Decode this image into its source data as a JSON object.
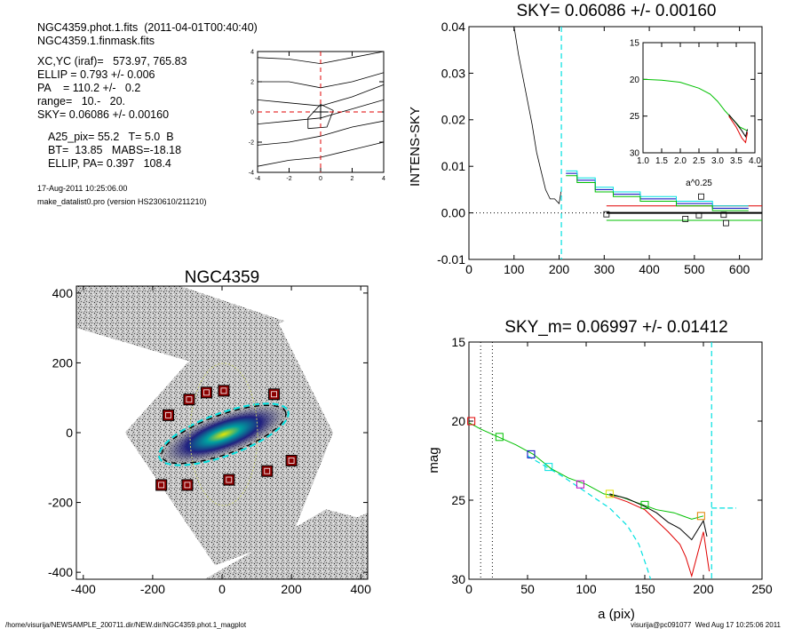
{
  "header": {
    "lines": [
      "NGC4359.phot.1.fits  (2011-04-01T00:40:40)",
      "NGC4359.1.finmask.fits",
      "XC,YC (iraf)=   573.97, 765.83",
      "ELLIP = 0.793 +/- 0.006",
      "PA    = 110.2 +/-   0.2",
      "range=   10.-   20.",
      "SKY= 0.06086 +/- 0.00160",
      "A25_pix= 55.2   T= 5.0  B",
      "BT=  13.85   MABS=-18.18",
      "ELLIP, PA= 0.397   108.4",
      "17-Aug-2011 10:25:06.00",
      "make_datalist0.pro (version HS230610/211210)"
    ]
  },
  "footer": {
    "left": "/home/visurija/NEWSAMPLE_200711.dir/NEW.dir/NGC4359.phot.1_magplot",
    "right": "visurija@pc091077  Wed Aug 17 10:25:06 2011"
  },
  "colors": {
    "sky_cyan": "#00e0e0",
    "green": "#00c000",
    "red": "#e00000",
    "blue": "#0000c0",
    "dark_red": "#8b0000"
  },
  "chart_data": [
    {
      "id": "centroid",
      "type": "line",
      "title": "",
      "xlim": [
        -4,
        4
      ],
      "ylim": [
        -4,
        4
      ],
      "xticks": [
        -4,
        -2,
        0,
        2,
        4
      ],
      "yticks": [
        -4,
        -2,
        0,
        2,
        4
      ],
      "xtick_labels": [
        "-4",
        "-2",
        "0",
        "2",
        "4"
      ],
      "ytick_labels": [
        "-4",
        "-2",
        "0",
        "2",
        "4"
      ],
      "contours": [
        [
          [
            -4,
            3.6
          ],
          [
            -2,
            3.5
          ],
          [
            0,
            3.2
          ],
          [
            2,
            3.6
          ],
          [
            4,
            4.0
          ]
        ],
        [
          [
            -4,
            2.0
          ],
          [
            -2,
            2.0
          ],
          [
            0,
            1.6
          ],
          [
            2,
            2.0
          ],
          [
            4,
            2.6
          ]
        ],
        [
          [
            -4,
            0.8
          ],
          [
            -2,
            0.6
          ],
          [
            0,
            0.4
          ],
          [
            2,
            1.0
          ],
          [
            4,
            1.8
          ]
        ],
        [
          [
            -4,
            -0.8
          ],
          [
            -2,
            -0.6
          ],
          [
            0,
            -0.4
          ],
          [
            2,
            0.2
          ],
          [
            4,
            0.8
          ]
        ],
        [
          [
            -4,
            -2.2
          ],
          [
            -2,
            -2.0
          ],
          [
            0,
            -1.6
          ],
          [
            2,
            -1.0
          ],
          [
            4,
            -0.6
          ]
        ],
        [
          [
            -4,
            -3.6
          ],
          [
            -2,
            -3.2
          ],
          [
            0,
            -3.0
          ],
          [
            2,
            -2.5
          ],
          [
            4,
            -2.0
          ]
        ],
        [
          [
            -0.8,
            -1.1
          ],
          [
            -0.8,
            -0.4
          ],
          [
            0,
            0.5
          ],
          [
            0.8,
            0.1
          ],
          [
            0.4,
            -1.0
          ],
          [
            -0.8,
            -1.1
          ]
        ]
      ]
    },
    {
      "id": "sky",
      "type": "line",
      "title": "SKY= 0.06086 +/- 0.00160",
      "xlabel": "",
      "ylabel": "INTENS-SKY",
      "xlim": [
        0,
        650
      ],
      "ylim": [
        -0.01,
        0.04
      ],
      "xticks": [
        0,
        100,
        200,
        300,
        400,
        500,
        600
      ],
      "xtick_labels": [
        "0",
        "100",
        "200",
        "300",
        "400",
        "500",
        "600"
      ],
      "yticks": [
        -0.01,
        0,
        0.01,
        0.02,
        0.03,
        0.04
      ],
      "ytick_labels": [
        "-0.01",
        "0.00",
        "0.01",
        "0.02",
        "0.03",
        "0.04"
      ],
      "profile": [
        [
          100,
          0.04
        ],
        [
          110,
          0.034
        ],
        [
          120,
          0.029
        ],
        [
          130,
          0.024
        ],
        [
          140,
          0.019
        ],
        [
          150,
          0.013
        ],
        [
          160,
          0.009
        ],
        [
          170,
          0.005
        ],
        [
          180,
          0.003
        ],
        [
          190,
          0.003
        ],
        [
          200,
          0.002
        ],
        [
          205,
          0.005
        ]
      ],
      "boundary_x": 205,
      "series": [
        {
          "name": "",
          "color": "#0000c0",
          "points": [
            [
              215,
              0.0085
            ],
            [
              240,
              0.0085
            ],
            [
              240,
              0.007
            ],
            [
              280,
              0.007
            ],
            [
              280,
              0.005
            ],
            [
              320,
              0.005
            ],
            [
              320,
              0.004
            ],
            [
              380,
              0.004
            ],
            [
              380,
              0.003
            ],
            [
              460,
              0.003
            ],
            [
              460,
              0.002
            ],
            [
              540,
              0.002
            ],
            [
              540,
              0.001
            ],
            [
              620,
              0.001
            ]
          ]
        },
        {
          "name": "",
          "color": "#00e0e0",
          "points": [
            [
              215,
              0.009
            ],
            [
              240,
              0.009
            ],
            [
              240,
              0.0075
            ],
            [
              280,
              0.0075
            ],
            [
              280,
              0.0055
            ],
            [
              320,
              0.0055
            ],
            [
              320,
              0.0045
            ],
            [
              380,
              0.0045
            ],
            [
              380,
              0.0035
            ],
            [
              460,
              0.0035
            ],
            [
              460,
              0.0025
            ],
            [
              540,
              0.0025
            ],
            [
              540,
              0.0015
            ],
            [
              620,
              0.0015
            ]
          ]
        },
        {
          "name": "",
          "color": "#00c000",
          "points": [
            [
              215,
              0.008
            ],
            [
              240,
              0.008
            ],
            [
              240,
              0.0065
            ],
            [
              280,
              0.0065
            ],
            [
              280,
              0.0045
            ],
            [
              320,
              0.0045
            ],
            [
              320,
              0.0035
            ],
            [
              380,
              0.0035
            ],
            [
              380,
              0.0025
            ],
            [
              460,
              0.0025
            ],
            [
              460,
              0.0015
            ],
            [
              540,
              0.0015
            ],
            [
              540,
              0.0005
            ],
            [
              620,
              0.0005
            ]
          ]
        }
      ],
      "hlines": [
        {
          "y": 0.0,
          "color": "#000000",
          "style": "dotted",
          "from": 0
        },
        {
          "y": 0.0015,
          "color": "#e00000",
          "style": "solid",
          "from": 305
        },
        {
          "y": 0.0,
          "color": "#000000",
          "style": "thick",
          "from": 305
        },
        {
          "y": -0.0016,
          "color": "#00c000",
          "style": "solid",
          "from": 305
        }
      ],
      "squares": [
        [
          305,
          -0.0003
        ],
        [
          480,
          -0.0013
        ],
        [
          510,
          -0.0005
        ],
        [
          515,
          0.0035
        ],
        [
          565,
          -0.0004
        ],
        [
          570,
          -0.0022
        ]
      ]
    },
    {
      "id": "inset",
      "type": "line",
      "xlabel": "a^0.25",
      "xlim": [
        1.0,
        4.0
      ],
      "ylim": [
        15,
        30
      ],
      "xticks": [
        1.0,
        1.5,
        2.0,
        2.5,
        3.0,
        3.5,
        4.0
      ],
      "xtick_labels": [
        "1.0",
        "1.5",
        "2.0",
        "2.5",
        "3.0",
        "3.5",
        "4.0"
      ],
      "yticks": [
        15,
        20,
        25,
        30
      ],
      "ytick_labels": [
        "15",
        "20",
        "25",
        "30"
      ],
      "series": [
        {
          "name": "",
          "color": "#00c000",
          "points": [
            [
              1.0,
              20.0
            ],
            [
              1.5,
              20.1
            ],
            [
              2.0,
              20.4
            ],
            [
              2.5,
              21.2
            ],
            [
              2.8,
              22.0
            ],
            [
              3.0,
              23.0
            ],
            [
              3.2,
              24.3
            ],
            [
              3.4,
              25.4
            ],
            [
              3.6,
              26.5
            ],
            [
              3.8,
              27.0
            ]
          ]
        },
        {
          "name": "",
          "color": "#e00000",
          "points": [
            [
              3.3,
              25.0
            ],
            [
              3.5,
              26.5
            ],
            [
              3.65,
              28.0
            ],
            [
              3.75,
              28.6
            ],
            [
              3.8,
              27.2
            ]
          ]
        },
        {
          "name": "",
          "color": "#000000",
          "points": [
            [
              3.3,
              24.8
            ],
            [
              3.5,
              26.0
            ],
            [
              3.65,
              27.0
            ],
            [
              3.75,
              27.8
            ],
            [
              3.8,
              26.8
            ]
          ]
        }
      ]
    },
    {
      "id": "image",
      "type": "scatter",
      "title": "NGC4359",
      "xlim": [
        -420,
        420
      ],
      "ylim": [
        -420,
        420
      ],
      "xticks": [
        -400,
        -200,
        0,
        200,
        400
      ],
      "xtick_labels": [
        "-400",
        "-200",
        "0",
        "200",
        "400"
      ],
      "yticks": [
        -400,
        -200,
        0,
        200,
        400
      ],
      "ytick_labels": [
        "-400",
        "-200",
        "0",
        "200",
        "400"
      ],
      "mask_boxes": [
        [
          -155,
          50
        ],
        [
          -95,
          95
        ],
        [
          -45,
          115
        ],
        [
          5,
          120
        ],
        [
          150,
          110
        ],
        [
          -175,
          -150
        ],
        [
          -100,
          -150
        ],
        [
          20,
          -135
        ],
        [
          130,
          -110
        ],
        [
          200,
          -80
        ]
      ]
    },
    {
      "id": "mag",
      "type": "line",
      "title": "SKY_m=  0.06997 +/- 0.01412",
      "xlabel": "a (pix)",
      "ylabel": "mag",
      "xlim": [
        0,
        250
      ],
      "ylim": [
        30,
        15
      ],
      "xticks": [
        0,
        50,
        100,
        150,
        200,
        250
      ],
      "xtick_labels": [
        "0",
        "50",
        "100",
        "150",
        "200",
        "250"
      ],
      "yticks": [
        15,
        20,
        25,
        30
      ],
      "ytick_labels": [
        "15",
        "20",
        "25",
        "30"
      ],
      "vlines": [
        {
          "x": 10,
          "style": "dotted"
        },
        {
          "x": 20,
          "style": "dotted"
        },
        {
          "x": 207,
          "style": "cyan-dashed"
        }
      ],
      "series": [
        {
          "name": "",
          "color": "#00c000",
          "points": [
            [
              0,
              20.1
            ],
            [
              10,
              20.5
            ],
            [
              25,
              21.0
            ],
            [
              40,
              21.5
            ],
            [
              55,
              22.1
            ],
            [
              70,
              23.0
            ],
            [
              85,
              23.6
            ],
            [
              100,
              24.0
            ],
            [
              115,
              24.6
            ],
            [
              130,
              24.8
            ],
            [
              145,
              25.2
            ],
            [
              160,
              25.6
            ],
            [
              175,
              25.8
            ],
            [
              190,
              26.2
            ],
            [
              200,
              26.0
            ]
          ]
        },
        {
          "name": "",
          "color": "#000000",
          "points": [
            [
              120,
              24.6
            ],
            [
              135,
              24.9
            ],
            [
              150,
              25.4
            ],
            [
              160,
              25.8
            ],
            [
              170,
              26.4
            ],
            [
              180,
              26.8
            ],
            [
              190,
              27.5
            ],
            [
              200,
              26.3
            ],
            [
              203,
              27.3
            ]
          ]
        },
        {
          "name": "",
          "color": "#e00000",
          "points": [
            [
              120,
              24.7
            ],
            [
              135,
              25.1
            ],
            [
              150,
              25.6
            ],
            [
              160,
              26.3
            ],
            [
              170,
              27.0
            ],
            [
              180,
              27.8
            ],
            [
              185,
              28.6
            ],
            [
              190,
              29.8
            ],
            [
              195,
              28.4
            ],
            [
              200,
              27.0
            ],
            [
              205,
              29.5
            ]
          ]
        }
      ],
      "sky_curve": [
        [
          50,
          22.2
        ],
        [
          80,
          23.5
        ],
        [
          100,
          24.5
        ],
        [
          120,
          25.5
        ],
        [
          135,
          26.6
        ],
        [
          145,
          27.8
        ],
        [
          152,
          29.3
        ],
        [
          155,
          30.0
        ]
      ],
      "sky_level": [
        [
          207,
          25.5
        ],
        [
          228,
          25.5
        ]
      ],
      "squares": [
        {
          "x": 2,
          "y": 20.0,
          "color": "#e00000"
        },
        {
          "x": 26,
          "y": 21.0,
          "color": "#00c000"
        },
        {
          "x": 53,
          "y": 22.1,
          "color": "#0000c0"
        },
        {
          "x": 68,
          "y": 22.9,
          "color": "#00e0e0"
        },
        {
          "x": 95,
          "y": 24.0,
          "color": "#c000c0"
        },
        {
          "x": 120,
          "y": 24.6,
          "color": "#e0e000"
        },
        {
          "x": 150,
          "y": 25.3,
          "color": "#00c000"
        },
        {
          "x": 198,
          "y": 26.0,
          "color": "#e08000"
        }
      ]
    }
  ]
}
